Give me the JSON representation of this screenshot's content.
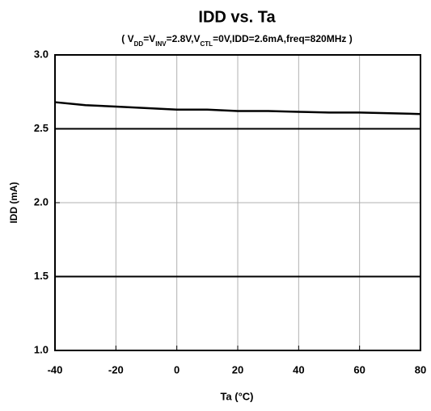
{
  "chart_data": {
    "type": "line",
    "title": "IDD vs. Ta",
    "subtitle": [
      "( V",
      "DD",
      "=V",
      "INV",
      "=2.8V,V",
      "CTL",
      "=0V,IDD=2.6mA,freq=820MHz )"
    ],
    "x_label": "Ta (°C)",
    "y_label": "IDD (mA)",
    "x": [
      -40,
      -30,
      -20,
      -10,
      0,
      10,
      20,
      30,
      40,
      50,
      60,
      70,
      80
    ],
    "values": [
      2.68,
      2.66,
      2.65,
      2.64,
      2.63,
      2.63,
      2.62,
      2.62,
      2.615,
      2.61,
      2.61,
      2.605,
      2.6
    ],
    "color": "#000000",
    "xlim": [
      -40,
      80
    ],
    "xticks": [
      -40,
      -20,
      0,
      20,
      40,
      60,
      80
    ],
    "ylim": [
      1,
      3
    ],
    "yticks": [
      {
        "value": 1,
        "label": "1.0"
      },
      1.5,
      {
        "value": 2,
        "label": "2.0"
      },
      2.5,
      {
        "value": 3,
        "label": "3.0"
      }
    ],
    "limit_lines": [
      1.5,
      2.5
    ],
    "grid": true
  }
}
